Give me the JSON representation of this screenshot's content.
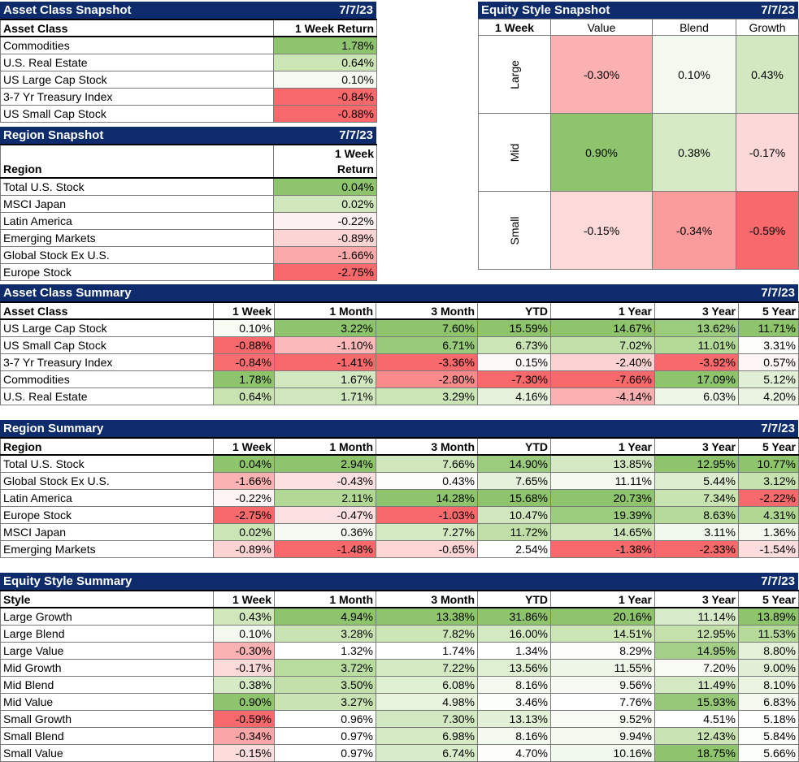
{
  "asset_snapshot": {
    "title": "Asset Class Snapshot",
    "date": "7/7/23",
    "col_headers": [
      "Asset Class",
      "1 Week Return"
    ],
    "rows": [
      {
        "label": "Commodities",
        "value": "1.78%",
        "color": "#8ec46b"
      },
      {
        "label": "U.S. Real Estate",
        "value": "0.64%",
        "color": "#cbe5b5"
      },
      {
        "label": "US Large Cap Stock",
        "value": "0.10%",
        "color": "#f6faf2"
      },
      {
        "label": "3-7 Yr Treasury Index",
        "value": "-0.84%",
        "color": "#f8696b"
      },
      {
        "label": "US Small Cap Stock",
        "value": "-0.88%",
        "color": "#f8696b"
      }
    ]
  },
  "region_snapshot": {
    "title": "Region Snapshot",
    "date": "7/7/23",
    "col_header_region": "Region",
    "col_header_return_1": "1 Week",
    "col_header_return_2": "Return",
    "rows": [
      {
        "label": "Total U.S. Stock",
        "value": "0.04%",
        "color": "#8ec46b"
      },
      {
        "label": "MSCI Japan",
        "value": "0.02%",
        "color": "#cfe7bb"
      },
      {
        "label": "Latin America",
        "value": "-0.22%",
        "color": "#fdf0f0"
      },
      {
        "label": "Emerging Markets",
        "value": "-0.89%",
        "color": "#fcd4d4"
      },
      {
        "label": "Global Stock Ex U.S.",
        "value": "-1.66%",
        "color": "#fba9a9"
      },
      {
        "label": "Europe Stock",
        "value": "-2.75%",
        "color": "#f8696b"
      }
    ]
  },
  "style_snapshot": {
    "title": "Equity Style Snapshot",
    "date": "7/7/23",
    "corner": "1 Week",
    "cols": [
      "Value",
      "Blend",
      "Growth"
    ],
    "rows": [
      {
        "label": "Large",
        "cells": [
          {
            "v": "-0.30%",
            "c": "#fbb1b1"
          },
          {
            "v": "0.10%",
            "c": "#f3f9ee"
          },
          {
            "v": "0.43%",
            "c": "#d2e8c0"
          }
        ]
      },
      {
        "label": "Mid",
        "cells": [
          {
            "v": "0.90%",
            "c": "#8ec46b"
          },
          {
            "v": "0.38%",
            "c": "#d6eac6"
          },
          {
            "v": "-0.17%",
            "c": "#fdd8d8"
          }
        ]
      },
      {
        "label": "Small",
        "cells": [
          {
            "v": "-0.15%",
            "c": "#fdd9d9"
          },
          {
            "v": "-0.34%",
            "c": "#fa9c9c"
          },
          {
            "v": "-0.59%",
            "c": "#f8696b"
          }
        ]
      }
    ]
  },
  "asset_summary": {
    "title": "Asset Class Summary",
    "date": "7/7/23",
    "headers": [
      "Asset Class",
      "1 Week",
      "1 Month",
      "3 Month",
      "YTD",
      "1 Year",
      "3 Year",
      "5 Year"
    ],
    "rows": [
      {
        "label": "US Large Cap Stock",
        "cells": [
          {
            "v": "0.10%",
            "c": "#f7fbf3"
          },
          {
            "v": "3.22%",
            "c": "#8ec46b"
          },
          {
            "v": "7.60%",
            "c": "#8ec46b"
          },
          {
            "v": "15.59%",
            "c": "#8ec46b"
          },
          {
            "v": "14.67%",
            "c": "#8ec46b"
          },
          {
            "v": "13.62%",
            "c": "#9bcb7c"
          },
          {
            "v": "11.71%",
            "c": "#8ec46b"
          }
        ]
      },
      {
        "label": "US Small Cap Stock",
        "cells": [
          {
            "v": "-0.88%",
            "c": "#f8696b"
          },
          {
            "v": "-1.10%",
            "c": "#fbb9b9"
          },
          {
            "v": "6.71%",
            "c": "#99ca79"
          },
          {
            "v": "6.73%",
            "c": "#cbe5b6"
          },
          {
            "v": "7.02%",
            "c": "#c2e0a9"
          },
          {
            "v": "11.01%",
            "c": "#b3d996"
          },
          {
            "v": "3.31%",
            "c": "#fcfdfb"
          }
        ]
      },
      {
        "label": "3-7 Yr Treasury Index",
        "cells": [
          {
            "v": "-0.84%",
            "c": "#f86e70"
          },
          {
            "v": "-1.41%",
            "c": "#f8696b"
          },
          {
            "v": "-3.36%",
            "c": "#f8696b"
          },
          {
            "v": "0.15%",
            "c": "#fdf8f8"
          },
          {
            "v": "-2.40%",
            "c": "#fcd2d2"
          },
          {
            "v": "-3.92%",
            "c": "#f8696b"
          },
          {
            "v": "0.57%",
            "c": "#fef5f5"
          }
        ]
      },
      {
        "label": "Commodities",
        "cells": [
          {
            "v": "1.78%",
            "c": "#8ec46b"
          },
          {
            "v": "1.67%",
            "c": "#d2e8c0"
          },
          {
            "v": "-2.80%",
            "c": "#f98a8b"
          },
          {
            "v": "-7.30%",
            "c": "#f8696b"
          },
          {
            "v": "-7.66%",
            "c": "#f8696b"
          },
          {
            "v": "17.09%",
            "c": "#8ec46b"
          },
          {
            "v": "5.12%",
            "c": "#e1f0d5"
          }
        ]
      },
      {
        "label": "U.S. Real Estate",
        "cells": [
          {
            "v": "0.64%",
            "c": "#c8e3b0"
          },
          {
            "v": "1.71%",
            "c": "#d0e7bd"
          },
          {
            "v": "3.29%",
            "c": "#cbe5b6"
          },
          {
            "v": "4.16%",
            "c": "#e6f2db"
          },
          {
            "v": "-4.14%",
            "c": "#fab0b0"
          },
          {
            "v": "6.03%",
            "c": "#eef6e7"
          },
          {
            "v": "4.20%",
            "c": "#eaf4e1"
          }
        ]
      }
    ]
  },
  "region_summary": {
    "title": "Region Summary",
    "date": "7/7/23",
    "headers": [
      "Region",
      "1 Week",
      "1 Month",
      "3 Month",
      "YTD",
      "1 Year",
      "3 Year",
      "5 Year"
    ],
    "rows": [
      {
        "label": "Total U.S. Stock",
        "cells": [
          {
            "v": "0.04%",
            "c": "#8ec46b"
          },
          {
            "v": "2.94%",
            "c": "#8ec46b"
          },
          {
            "v": "7.66%",
            "c": "#cfe7bb"
          },
          {
            "v": "14.90%",
            "c": "#9bcb7c"
          },
          {
            "v": "13.85%",
            "c": "#d4e9c3"
          },
          {
            "v": "12.95%",
            "c": "#8ec46b"
          },
          {
            "v": "10.77%",
            "c": "#8ec46b"
          }
        ]
      },
      {
        "label": "Global Stock Ex U.S.",
        "cells": [
          {
            "v": "-1.66%",
            "c": "#fbb2b2"
          },
          {
            "v": "-0.43%",
            "c": "#fde1e1"
          },
          {
            "v": "0.43%",
            "c": "#fcfdfb"
          },
          {
            "v": "7.65%",
            "c": "#e5f1da"
          },
          {
            "v": "11.11%",
            "c": "#f5faf1"
          },
          {
            "v": "5.44%",
            "c": "#dcedcf"
          },
          {
            "v": "3.12%",
            "c": "#c6e2ae"
          }
        ]
      },
      {
        "label": "Latin America",
        "cells": [
          {
            "v": "-0.22%",
            "c": "#fef4f4"
          },
          {
            "v": "2.11%",
            "c": "#b1d894"
          },
          {
            "v": "14.28%",
            "c": "#8ec46b"
          },
          {
            "v": "15.68%",
            "c": "#8ec46b"
          },
          {
            "v": "20.73%",
            "c": "#8ec46b"
          },
          {
            "v": "7.34%",
            "c": "#c7e3af"
          },
          {
            "v": "-2.22%",
            "c": "#f8696b"
          }
        ]
      },
      {
        "label": "Europe Stock",
        "cells": [
          {
            "v": "-2.75%",
            "c": "#f8696b"
          },
          {
            "v": "-0.47%",
            "c": "#fde0e0"
          },
          {
            "v": "-1.03%",
            "c": "#f8696b"
          },
          {
            "v": "10.47%",
            "c": "#d0e7bd"
          },
          {
            "v": "19.39%",
            "c": "#9ccc7d"
          },
          {
            "v": "8.63%",
            "c": "#b6da9a"
          },
          {
            "v": "4.31%",
            "c": "#b0d792"
          }
        ]
      },
      {
        "label": "MSCI Japan",
        "cells": [
          {
            "v": "0.02%",
            "c": "#cbe5b5"
          },
          {
            "v": "0.36%",
            "c": "#f6faf2"
          },
          {
            "v": "7.27%",
            "c": "#d3e9c2"
          },
          {
            "v": "11.72%",
            "c": "#bfdfa6"
          },
          {
            "v": "14.65%",
            "c": "#cfe7bb"
          },
          {
            "v": "3.11%",
            "c": "#f1f8ec"
          },
          {
            "v": "1.36%",
            "c": "#f4f9ef"
          }
        ]
      },
      {
        "label": "Emerging Markets",
        "cells": [
          {
            "v": "-0.89%",
            "c": "#fcd3d3"
          },
          {
            "v": "-1.48%",
            "c": "#f8696b"
          },
          {
            "v": "-0.65%",
            "c": "#fdd5d5"
          },
          {
            "v": "2.54%",
            "c": "#ffffff"
          },
          {
            "v": "-1.38%",
            "c": "#f8696b"
          },
          {
            "v": "-2.33%",
            "c": "#f8696b"
          },
          {
            "v": "-1.54%",
            "c": "#fcdcdc"
          }
        ]
      }
    ]
  },
  "style_summary": {
    "title": "Equity Style Summary",
    "date": "7/7/23",
    "headers": [
      "Style",
      "1 Week",
      "1 Month",
      "3 Month",
      "YTD",
      "1 Year",
      "3 Year",
      "5 Year"
    ],
    "rows": [
      {
        "label": "Large Growth",
        "cells": [
          {
            "v": "0.43%",
            "c": "#cfe7bb"
          },
          {
            "v": "4.94%",
            "c": "#8ec46b"
          },
          {
            "v": "13.38%",
            "c": "#8ec46b"
          },
          {
            "v": "31.86%",
            "c": "#8ec46b"
          },
          {
            "v": "20.16%",
            "c": "#8ec46b"
          },
          {
            "v": "11.14%",
            "c": "#d8ebc9"
          },
          {
            "v": "13.89%",
            "c": "#8ec46b"
          }
        ]
      },
      {
        "label": "Large Blend",
        "cells": [
          {
            "v": "0.10%",
            "c": "#f3f9ee"
          },
          {
            "v": "3.28%",
            "c": "#c9e4b2"
          },
          {
            "v": "7.82%",
            "c": "#cde6b8"
          },
          {
            "v": "16.00%",
            "c": "#d3e9c2"
          },
          {
            "v": "14.51%",
            "c": "#cbe5b5"
          },
          {
            "v": "12.95%",
            "c": "#c4e1ac"
          },
          {
            "v": "11.53%",
            "c": "#b6da9a"
          }
        ]
      },
      {
        "label": "Large Value",
        "cells": [
          {
            "v": "-0.30%",
            "c": "#fbb2b2"
          },
          {
            "v": "1.32%",
            "c": "#ffffff"
          },
          {
            "v": "1.74%",
            "c": "#ffffff"
          },
          {
            "v": "1.34%",
            "c": "#ffffff"
          },
          {
            "v": "8.29%",
            "c": "#fdfefc"
          },
          {
            "v": "14.95%",
            "c": "#a3cf86"
          },
          {
            "v": "8.80%",
            "c": "#e4f1d9"
          }
        ]
      },
      {
        "label": "Mid Growth",
        "cells": [
          {
            "v": "-0.17%",
            "c": "#fddada"
          },
          {
            "v": "3.72%",
            "c": "#b9dc9f"
          },
          {
            "v": "7.22%",
            "c": "#d3e9c2"
          },
          {
            "v": "13.56%",
            "c": "#dfefd2"
          },
          {
            "v": "11.55%",
            "c": "#eef6e7"
          },
          {
            "v": "7.20%",
            "c": "#f7fbf3"
          },
          {
            "v": "9.00%",
            "c": "#e1f0d5"
          }
        ]
      },
      {
        "label": "Mid Blend",
        "cells": [
          {
            "v": "0.38%",
            "c": "#d6eac6"
          },
          {
            "v": "3.50%",
            "c": "#c2e0a9"
          },
          {
            "v": "6.08%",
            "c": "#dfefd1"
          },
          {
            "v": "8.16%",
            "c": "#f3f9ee"
          },
          {
            "v": "9.56%",
            "c": "#f6faf2"
          },
          {
            "v": "11.49%",
            "c": "#d4e9c3"
          },
          {
            "v": "8.10%",
            "c": "#eaf4e1"
          }
        ]
      },
      {
        "label": "Mid Value",
        "cells": [
          {
            "v": "0.90%",
            "c": "#8ec46b"
          },
          {
            "v": "3.27%",
            "c": "#c9e4b2"
          },
          {
            "v": "4.98%",
            "c": "#e8f3de"
          },
          {
            "v": "3.46%",
            "c": "#fbfdf9"
          },
          {
            "v": "7.76%",
            "c": "#ffffff"
          },
          {
            "v": "15.93%",
            "c": "#97c877"
          },
          {
            "v": "6.83%",
            "c": "#f3f9ee"
          }
        ]
      },
      {
        "label": "Small Growth",
        "cells": [
          {
            "v": "-0.59%",
            "c": "#f8696b"
          },
          {
            "v": "0.96%",
            "c": "#ffffff"
          },
          {
            "v": "7.30%",
            "c": "#d2e8c0"
          },
          {
            "v": "13.13%",
            "c": "#e2f0d6"
          },
          {
            "v": "9.52%",
            "c": "#f7fbf4"
          },
          {
            "v": "4.51%",
            "c": "#ffffff"
          },
          {
            "v": "5.18%",
            "c": "#ffffff"
          }
        ]
      },
      {
        "label": "Small Blend",
        "cells": [
          {
            "v": "-0.34%",
            "c": "#fba6a6"
          },
          {
            "v": "0.97%",
            "c": "#ffffff"
          },
          {
            "v": "6.98%",
            "c": "#d5eac5"
          },
          {
            "v": "8.16%",
            "c": "#f3f9ee"
          },
          {
            "v": "9.94%",
            "c": "#f3f9ee"
          },
          {
            "v": "12.43%",
            "c": "#c9e4b2"
          },
          {
            "v": "5.84%",
            "c": "#fbfdf9"
          }
        ]
      },
      {
        "label": "Small Value",
        "cells": [
          {
            "v": "-0.15%",
            "c": "#fddcdc"
          },
          {
            "v": "0.97%",
            "c": "#ffffff"
          },
          {
            "v": "6.74%",
            "c": "#d9ecca"
          },
          {
            "v": "4.70%",
            "c": "#fdfefc"
          },
          {
            "v": "10.16%",
            "c": "#f1f8ec"
          },
          {
            "v": "18.75%",
            "c": "#8ec46b"
          },
          {
            "v": "5.66%",
            "c": "#fbfdf9"
          }
        ]
      }
    ]
  }
}
